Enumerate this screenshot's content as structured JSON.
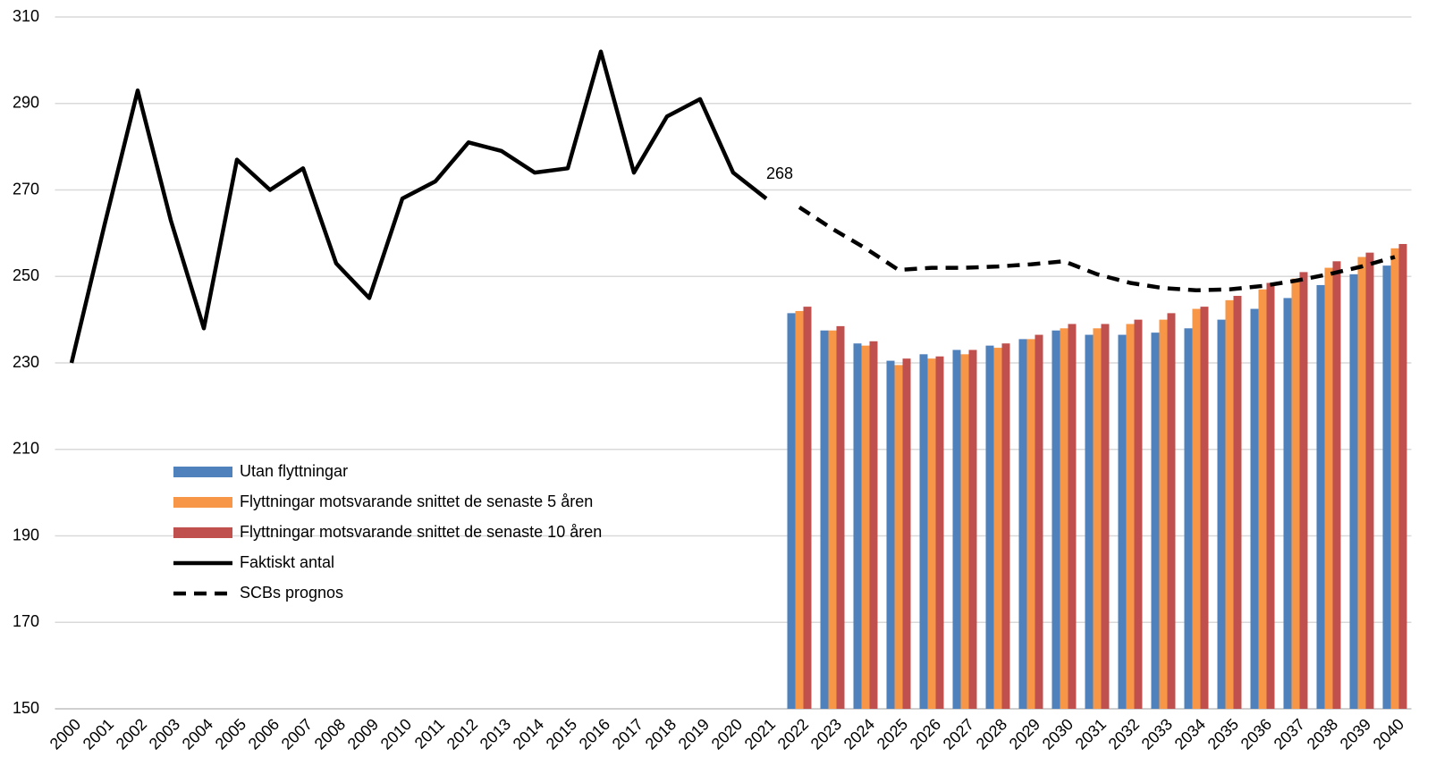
{
  "chart_data": {
    "type": "bar",
    "categories": [
      "2000",
      "2001",
      "2002",
      "2003",
      "2004",
      "2005",
      "2006",
      "2007",
      "2008",
      "2009",
      "2010",
      "2011",
      "2012",
      "2013",
      "2014",
      "2015",
      "2016",
      "2017",
      "2018",
      "2019",
      "2020",
      "2021",
      "2022",
      "2023",
      "2024",
      "2025",
      "2026",
      "2027",
      "2028",
      "2029",
      "2030",
      "2031",
      "2032",
      "2033",
      "2034",
      "2035",
      "2036",
      "2037",
      "2038",
      "2039",
      "2040"
    ],
    "ylim": [
      150,
      310
    ],
    "yticks": [
      150,
      170,
      190,
      210,
      230,
      250,
      270,
      290,
      310
    ],
    "grid": true,
    "legend": "left",
    "series": [
      {
        "name": "Utan flyttningar",
        "type": "bar",
        "color": "#4f81bd",
        "values": [
          null,
          null,
          null,
          null,
          null,
          null,
          null,
          null,
          null,
          null,
          null,
          null,
          null,
          null,
          null,
          null,
          null,
          null,
          null,
          null,
          null,
          null,
          241.5,
          237.5,
          234.5,
          230.5,
          232,
          233,
          234,
          235.5,
          237.5,
          236.5,
          236.5,
          237,
          238,
          240,
          242.5,
          245,
          248,
          250.5,
          252.5
        ]
      },
      {
        "name": "Flyttningar motsvarande snittet de senaste 5 åren",
        "type": "bar",
        "color": "#f79646",
        "values": [
          null,
          null,
          null,
          null,
          null,
          null,
          null,
          null,
          null,
          null,
          null,
          null,
          null,
          null,
          null,
          null,
          null,
          null,
          null,
          null,
          null,
          null,
          242,
          237.5,
          234,
          229.5,
          231,
          232,
          233.5,
          235.5,
          238,
          238,
          239,
          240,
          242.5,
          244.5,
          247,
          249.5,
          252,
          254.5,
          256.5
        ]
      },
      {
        "name": "Flyttningar motsvarande snittet de senaste 10 åren",
        "type": "bar",
        "color": "#c0504d",
        "values": [
          null,
          null,
          null,
          null,
          null,
          null,
          null,
          null,
          null,
          null,
          null,
          null,
          null,
          null,
          null,
          null,
          null,
          null,
          null,
          null,
          null,
          null,
          243,
          238.5,
          235,
          231,
          231.5,
          233,
          234.5,
          236.5,
          239,
          239,
          240,
          241.5,
          243,
          245.5,
          248.5,
          251,
          253.5,
          255.5,
          257.5
        ]
      },
      {
        "name": "Faktiskt antal",
        "type": "line",
        "color": "#000000",
        "dash": false,
        "values": [
          230,
          262,
          293,
          263,
          238,
          277,
          270,
          275,
          253,
          245,
          268,
          272,
          281,
          279,
          274,
          275,
          302,
          274,
          287,
          291,
          274,
          268,
          null,
          null,
          null,
          null,
          null,
          null,
          null,
          null,
          null,
          null,
          null,
          null,
          null,
          null,
          null,
          null,
          null,
          null,
          null
        ],
        "value_labels": [
          null,
          null,
          null,
          null,
          null,
          null,
          null,
          null,
          null,
          null,
          null,
          null,
          null,
          null,
          null,
          null,
          null,
          null,
          null,
          null,
          null,
          "268",
          null,
          null,
          null,
          null,
          null,
          null,
          null,
          null,
          null,
          null,
          null,
          null,
          null,
          null,
          null,
          null,
          null,
          null,
          null
        ]
      },
      {
        "name": "SCBs prognos",
        "type": "line",
        "color": "#000000",
        "dash": true,
        "values": [
          null,
          null,
          null,
          null,
          null,
          null,
          null,
          null,
          null,
          null,
          null,
          null,
          null,
          null,
          null,
          null,
          null,
          null,
          null,
          null,
          null,
          null,
          266,
          261,
          256.5,
          251.5,
          252,
          252,
          252.3,
          252.8,
          253.5,
          250.5,
          248.5,
          247.3,
          246.8,
          247,
          247.8,
          249,
          250.5,
          252.3,
          254.5
        ]
      }
    ]
  }
}
